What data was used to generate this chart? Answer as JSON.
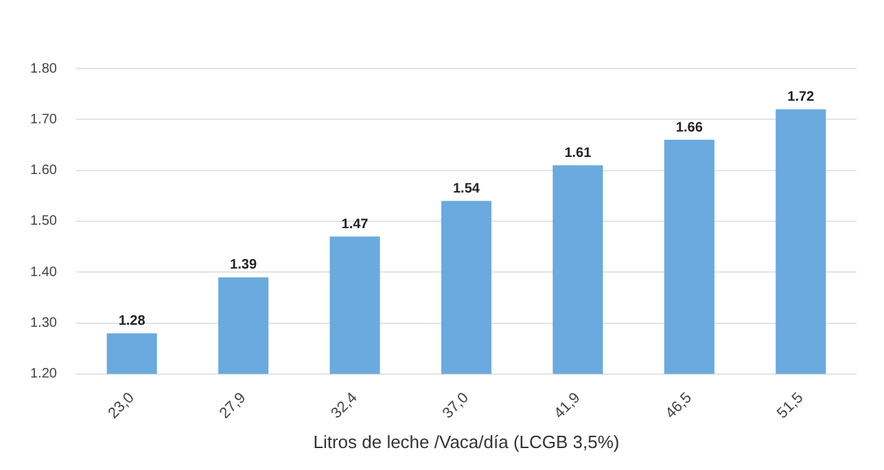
{
  "chart_data": {
    "type": "bar",
    "xlabel": "Litros de leche /Vaca/día (LCGB 3,5%)",
    "categories": [
      "23,0",
      "27,9",
      "32,4",
      "37,0",
      "41,9",
      "46,5",
      "51,5"
    ],
    "values": [
      1.28,
      1.39,
      1.47,
      1.54,
      1.61,
      1.66,
      1.72
    ],
    "color": "#6aaade",
    "ylim": [
      1.2,
      1.8
    ],
    "yticks": [
      {
        "value": 1.2,
        "label": "1.20"
      },
      {
        "value": 1.3,
        "label": "1.30"
      },
      {
        "value": 1.4,
        "label": "1.40"
      },
      {
        "value": 1.5,
        "label": "1.50"
      },
      {
        "value": 1.6,
        "label": "1.60"
      },
      {
        "value": 1.7,
        "label": "1.70"
      },
      {
        "value": 1.8,
        "label": "1.80"
      }
    ],
    "grid": "y",
    "data_labels": true,
    "legend": false
  }
}
